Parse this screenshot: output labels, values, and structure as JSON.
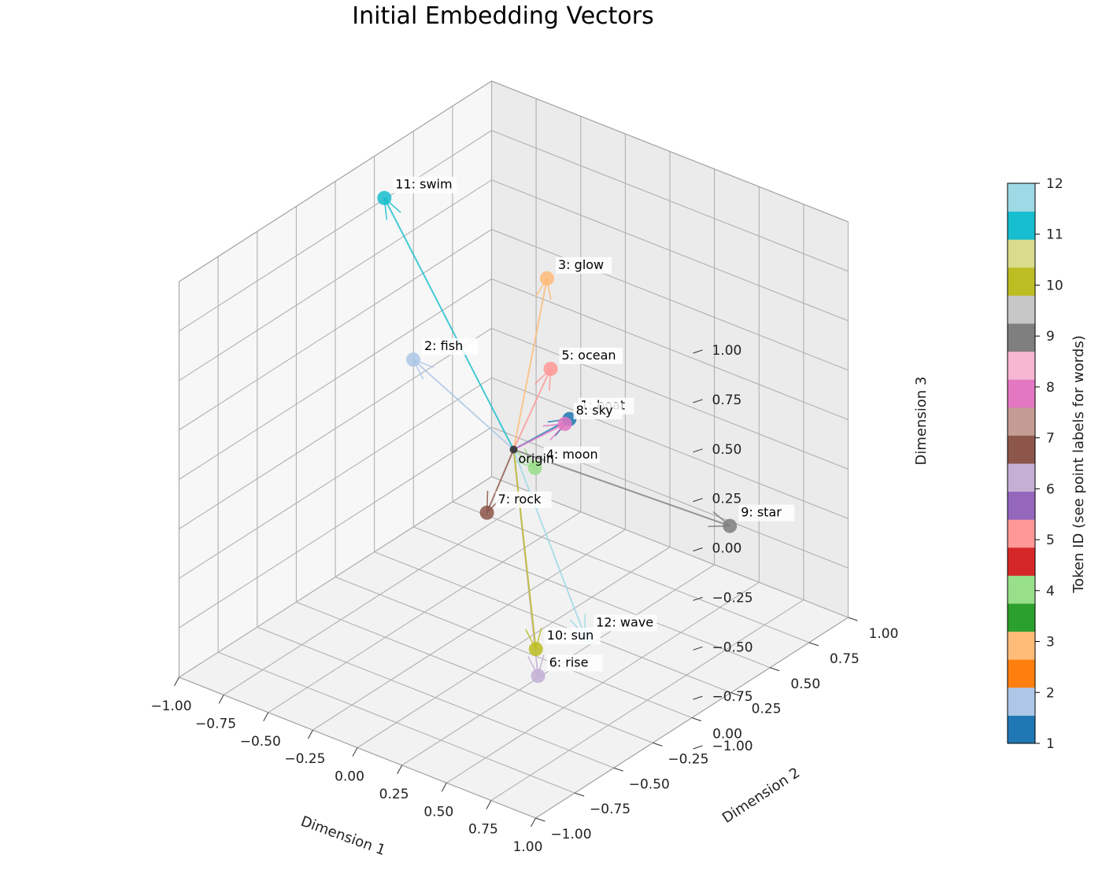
{
  "chart_data": {
    "type": "scatter",
    "title": "Initial Embedding Vectors",
    "xlabel": "Dimension 1",
    "ylabel": "Dimension 2",
    "zlabel": "Dimension 3",
    "xlim": [
      -1,
      1
    ],
    "ylim": [
      -1,
      1
    ],
    "zlim": [
      -1,
      1
    ],
    "x_ticks": [
      "−1.00",
      "−0.75",
      "−0.50",
      "−0.25",
      "0.00",
      "0.25",
      "0.50",
      "0.75",
      "1.00"
    ],
    "y_ticks": [
      "−1.00",
      "−0.75",
      "−0.50",
      "−0.25",
      "0.00",
      "0.25",
      "0.50",
      "0.75",
      "1.00"
    ],
    "z_ticks": [
      "−1.00",
      "−0.75",
      "−0.50",
      "−0.25",
      "0.00",
      "0.25",
      "0.50",
      "0.75",
      "1.00"
    ],
    "grid": true,
    "origin_label": "origin",
    "colormap": "tab20",
    "points": [
      {
        "id": 1,
        "label": "1: boat",
        "x": 0.05,
        "y": 0.3,
        "z": 0.02,
        "color": "#1f77b4"
      },
      {
        "id": 2,
        "label": "2: fish",
        "x": -0.3,
        "y": -0.3,
        "z": 0.5,
        "color": "#aec7e8"
      },
      {
        "id": 3,
        "label": "3: glow",
        "x": 0.1,
        "y": 0.1,
        "z": 0.85,
        "color": "#ffbb78"
      },
      {
        "id": 4,
        "label": "4: moon",
        "x": 0.12,
        "y": 0.0,
        "z": -0.05,
        "color": "#98df8a"
      },
      {
        "id": 5,
        "label": "5: ocean",
        "x": 0.12,
        "y": 0.1,
        "z": 0.4,
        "color": "#ff9896"
      },
      {
        "id": 6,
        "label": "6: rise",
        "x": 0.4,
        "y": -0.3,
        "z": -0.85,
        "color": "#c5b0d5"
      },
      {
        "id": 7,
        "label": "7: rock",
        "x": -0.5,
        "y": 0.4,
        "z": -0.7,
        "color": "#8c564b"
      },
      {
        "id": 8,
        "label": "8: sky",
        "x": 0.2,
        "y": 0.1,
        "z": 0.15,
        "color": "#e377c2"
      },
      {
        "id": 9,
        "label": "9: star",
        "x": 0.95,
        "y": 0.3,
        "z": -0.2,
        "color": "#7f7f7f"
      },
      {
        "id": 10,
        "label": "10: sun",
        "x": 0.3,
        "y": -0.2,
        "z": -0.8,
        "color": "#bcbd22"
      },
      {
        "id": 11,
        "label": "11: swim",
        "x": -0.9,
        "y": 0.2,
        "z": 0.85,
        "color": "#17becf"
      },
      {
        "id": 12,
        "label": "12: wave",
        "x": 0.4,
        "y": 0.0,
        "z": -0.8,
        "color": "#9edae5"
      }
    ],
    "colorbar": {
      "label": "Token ID (see point labels for words)",
      "ticks": [
        "1",
        "2",
        "3",
        "4",
        "5",
        "6",
        "7",
        "8",
        "9",
        "10",
        "11",
        "12"
      ],
      "colors": [
        "#1f77b4",
        "#aec7e8",
        "#ff7f0e",
        "#ffbb78",
        "#2ca02c",
        "#98df8a",
        "#d62728",
        "#ff9896",
        "#9467bd",
        "#c5b0d5",
        "#8c564b",
        "#c49c94",
        "#e377c2",
        "#f7b6d2",
        "#7f7f7f",
        "#c7c7c7",
        "#bcbd22",
        "#dbdb8d",
        "#17becf",
        "#9edae5"
      ]
    }
  }
}
